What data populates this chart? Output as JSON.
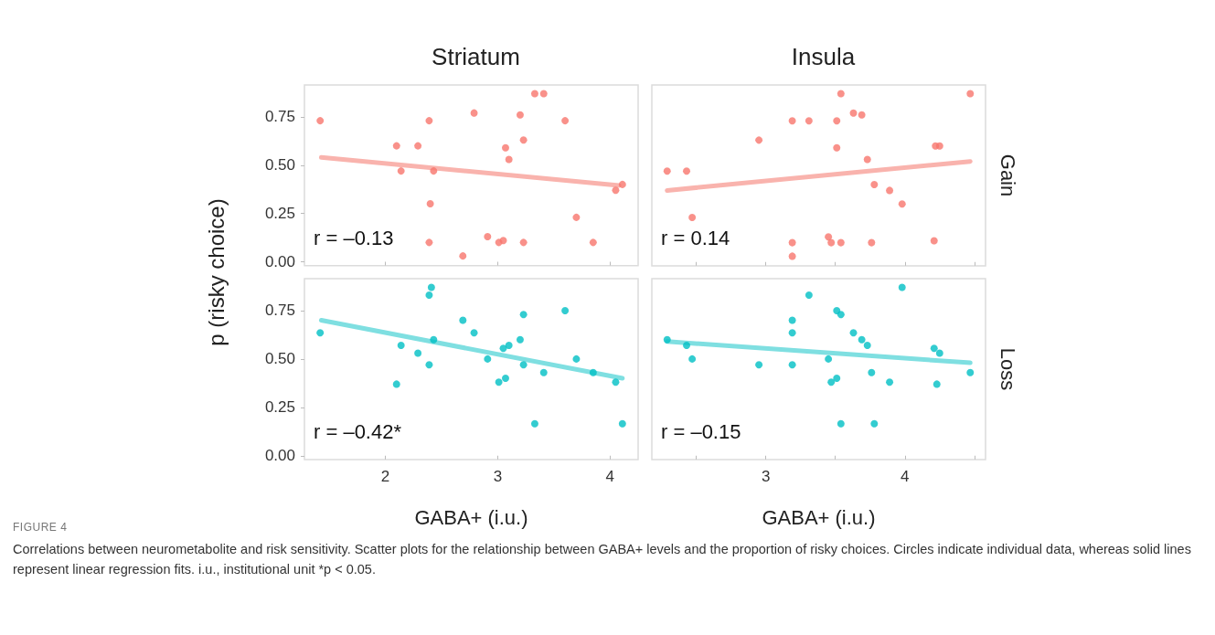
{
  "chart_data": [
    {
      "type": "scatter",
      "title": "Striatum",
      "ylabel": "p (risky choice)",
      "line_style": "solid",
      "tick_labels": "y",
      "xlim": [
        1.28,
        4.25
      ],
      "xticks": [
        2,
        3,
        4
      ],
      "ylim": [
        -0.02,
        0.915
      ],
      "yticks": [
        {
          "value": 0,
          "label": "0.00"
        },
        {
          "value": 0.25,
          "label": "0.25"
        },
        {
          "value": 0.5,
          "label": "0.50"
        },
        {
          "value": 0.75,
          "label": "0.75"
        }
      ],
      "annotations": [
        "r = –0.13"
      ],
      "series": [
        {
          "marker": "circle",
          "color": "#f8766d",
          "x": [
            1.42,
            2.39,
            2.1,
            2.29,
            2.14,
            2.43,
            2.4,
            2.39,
            2.69,
            2.79,
            2.91,
            3.01,
            3.05,
            3.07,
            3.1,
            3.2,
            3.23,
            3.23,
            3.33,
            3.41,
            3.6,
            3.7,
            3.85,
            4.05,
            4.11
          ],
          "values": [
            0.73,
            0.73,
            0.6,
            0.6,
            0.47,
            0.47,
            0.3,
            0.1,
            0.03,
            0.77,
            0.13,
            0.1,
            0.11,
            0.59,
            0.53,
            0.76,
            0.63,
            0.1,
            0.87,
            0.87,
            0.73,
            0.23,
            0.1,
            0.37,
            0.4
          ]
        },
        {
          "type": "line",
          "marker": "none",
          "color": "#f9b3ad",
          "x": [
            1.43,
            4.08
          ],
          "values": [
            0.54,
            0.395
          ]
        }
      ]
    },
    {
      "type": "scatter",
      "title": "Insula",
      "y2label": "Gain",
      "line_style": "solid",
      "tick_labels": false,
      "xlim": [
        2.18,
        4.58
      ],
      "xticks": [
        {
          "value": 2.5,
          "label": null
        },
        3,
        {
          "value": 3.5,
          "label": null
        },
        4,
        {
          "value": 4.5,
          "label": null
        }
      ],
      "ylim": [
        -0.02,
        0.915
      ],
      "annotations": [
        "r = 0.14"
      ],
      "series": [
        {
          "marker": "circle",
          "color": "#f8766d",
          "x": [
            2.29,
            2.43,
            2.47,
            2.95,
            3.19,
            3.31,
            3.51,
            3.54,
            3.63,
            3.69,
            3.51,
            3.73,
            3.78,
            3.89,
            3.98,
            4.22,
            4.25,
            4.47,
            3.19,
            3.19,
            3.45,
            3.47,
            3.54,
            3.76,
            4.21
          ],
          "values": [
            0.47,
            0.47,
            0.23,
            0.63,
            0.73,
            0.73,
            0.73,
            0.87,
            0.77,
            0.76,
            0.59,
            0.53,
            0.4,
            0.37,
            0.3,
            0.6,
            0.6,
            0.87,
            0.1,
            0.03,
            0.13,
            0.1,
            0.1,
            0.1,
            0.11
          ]
        },
        {
          "type": "line",
          "marker": "none",
          "color": "#f9b3ad",
          "x": [
            2.29,
            4.47
          ],
          "values": [
            0.37,
            0.52
          ]
        }
      ]
    },
    {
      "type": "scatter",
      "xlabel": "GABA+ (i.u.)",
      "line_style": "solid",
      "xlim": [
        1.28,
        4.25
      ],
      "xticks": [
        2,
        3,
        4
      ],
      "ylim": [
        -0.02,
        0.915
      ],
      "yticks": [
        {
          "value": 0,
          "label": "0.00"
        },
        {
          "value": 0.25,
          "label": "0.25"
        },
        {
          "value": 0.5,
          "label": "0.50"
        },
        {
          "value": 0.75,
          "label": "0.75"
        }
      ],
      "annotations": [
        "r = –0.42*"
      ],
      "series": [
        {
          "marker": "circle",
          "color": "#00bfc4",
          "x": [
            1.42,
            2.39,
            2.41,
            2.43,
            2.14,
            2.29,
            2.39,
            2.1,
            2.69,
            2.79,
            2.91,
            3.01,
            3.07,
            3.05,
            3.1,
            3.2,
            3.23,
            3.23,
            3.33,
            3.41,
            3.6,
            3.7,
            3.85,
            4.05,
            4.11
          ],
          "values": [
            0.635,
            0.83,
            0.87,
            0.6,
            0.57,
            0.53,
            0.47,
            0.37,
            0.7,
            0.635,
            0.5,
            0.38,
            0.4,
            0.555,
            0.57,
            0.6,
            0.73,
            0.47,
            0.165,
            0.43,
            0.75,
            0.5,
            0.43,
            0.38,
            0.165
          ]
        },
        {
          "type": "line",
          "marker": "none",
          "color": "#7fdfe1",
          "x": [
            1.43,
            4.11
          ],
          "values": [
            0.7,
            0.4
          ]
        }
      ]
    },
    {
      "type": "scatter",
      "xlabel": "GABA+ (i.u.)",
      "y2label": "Loss",
      "line_style": "solid",
      "tick_labels": "x",
      "xlim": [
        2.18,
        4.58
      ],
      "xticks": [
        {
          "value": 2.5,
          "label": null
        },
        3,
        {
          "value": 3.5,
          "label": null
        },
        4,
        {
          "value": 4.5,
          "label": null
        }
      ],
      "ylim": [
        -0.02,
        0.915
      ],
      "annotations": [
        "r = –0.15",
        "FIGURE 4",
        "Correlations between neurometabolite and risk sensitivity. Scatter plots for the relationship between GABA+ levels and the proportion of risky choices. Circles indicate individual data, whereas solid lines represent linear regression fits. i.u., institutional unit *p < 0.05."
      ],
      "series": [
        {
          "marker": "circle",
          "color": "#00bfc4",
          "x": [
            2.29,
            2.43,
            2.47,
            2.95,
            3.19,
            3.19,
            3.19,
            3.31,
            3.45,
            3.47,
            3.51,
            3.51,
            3.54,
            3.54,
            3.63,
            3.69,
            3.73,
            3.76,
            3.78,
            3.89,
            3.98,
            4.21,
            4.25,
            4.23,
            4.47
          ],
          "values": [
            0.6,
            0.57,
            0.5,
            0.47,
            0.47,
            0.7,
            0.635,
            0.83,
            0.5,
            0.38,
            0.4,
            0.75,
            0.73,
            0.165,
            0.635,
            0.6,
            0.57,
            0.43,
            0.165,
            0.38,
            0.87,
            0.555,
            0.53,
            0.37,
            0.43
          ]
        },
        {
          "type": "line",
          "marker": "none",
          "color": "#7fdfe1",
          "x": [
            2.29,
            4.47
          ],
          "values": [
            0.59,
            0.48
          ]
        }
      ]
    }
  ]
}
